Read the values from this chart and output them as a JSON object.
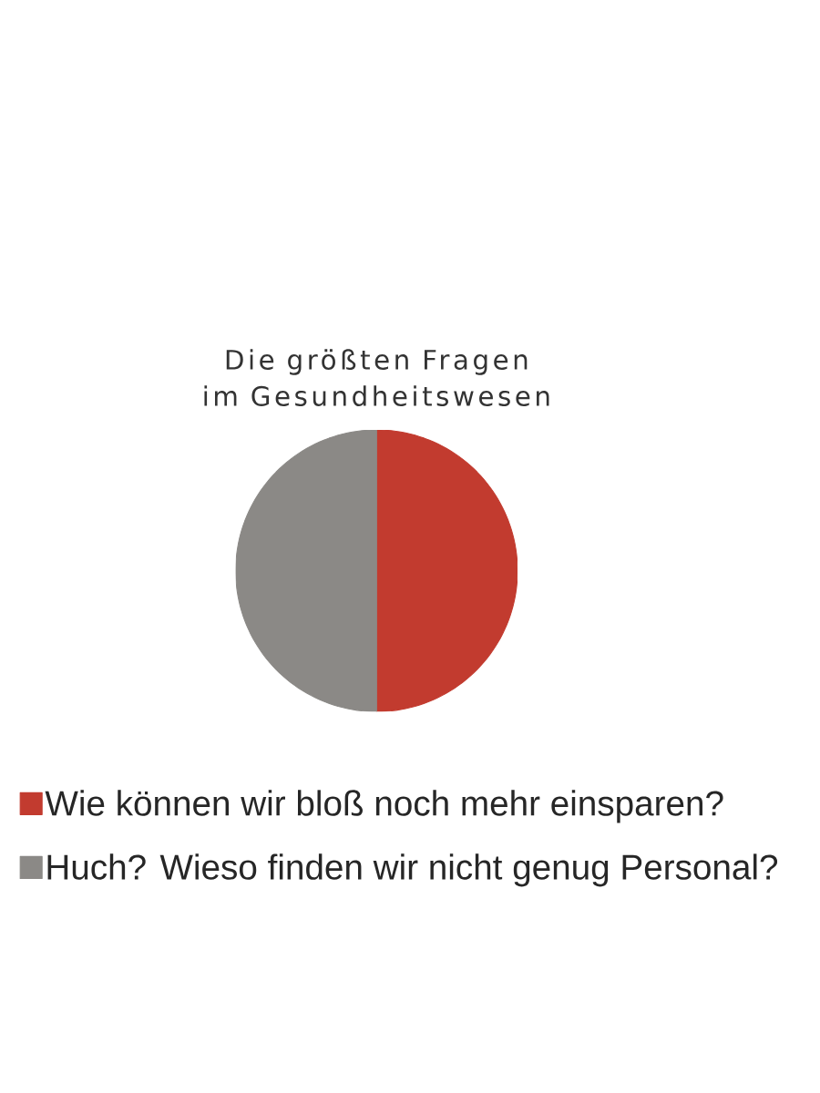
{
  "chart_data": {
    "type": "pie",
    "title": "Die größten Fragen\nim Gesundheitswesen",
    "categories": [
      "Wie können wir bloß noch mehr einsparen?",
      "Huch? Wieso finden wir nicht genug Personal?"
    ],
    "values": [
      50,
      50
    ],
    "colors": [
      "#c23b2f",
      "#8b8986"
    ],
    "legend": "bottom"
  }
}
